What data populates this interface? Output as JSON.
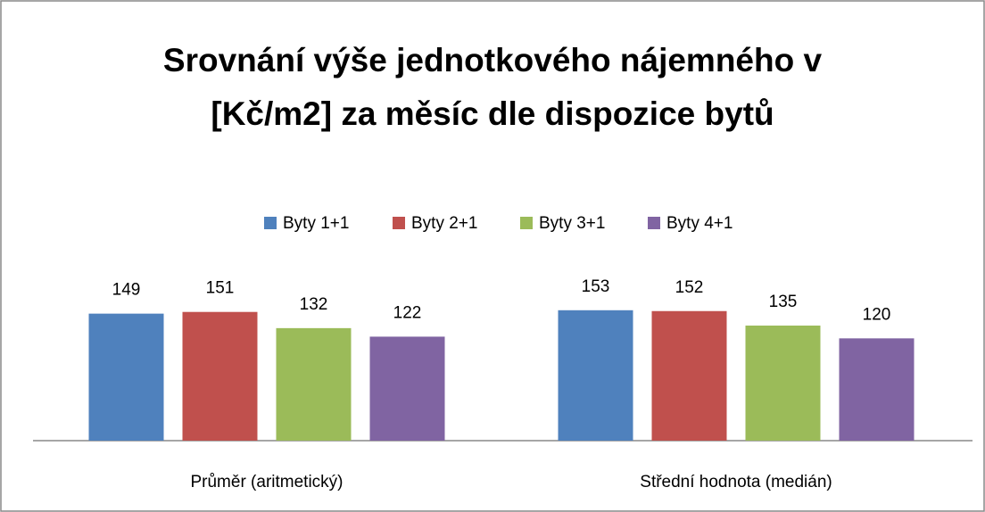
{
  "chart_data": {
    "type": "bar",
    "title": "Srovnání výše jednotkového nájemného v [Kč/m2] za měsíc dle dispozice bytů",
    "categories": [
      "Průměr (aritmetický)",
      "Střední hodnota (medián)"
    ],
    "series": [
      {
        "name": "Byty 1+1",
        "color": "#4f81bd",
        "values": [
          149,
          153
        ]
      },
      {
        "name": "Byty 2+1",
        "color": "#c0504d",
        "values": [
          151,
          152
        ]
      },
      {
        "name": "Byty 3+1",
        "color": "#9bbb59",
        "values": [
          132,
          135
        ]
      },
      {
        "name": "Byty 4+1",
        "color": "#8064a2",
        "values": [
          122,
          120
        ]
      }
    ],
    "ylim": [
      0,
      180
    ],
    "legend": "top"
  }
}
